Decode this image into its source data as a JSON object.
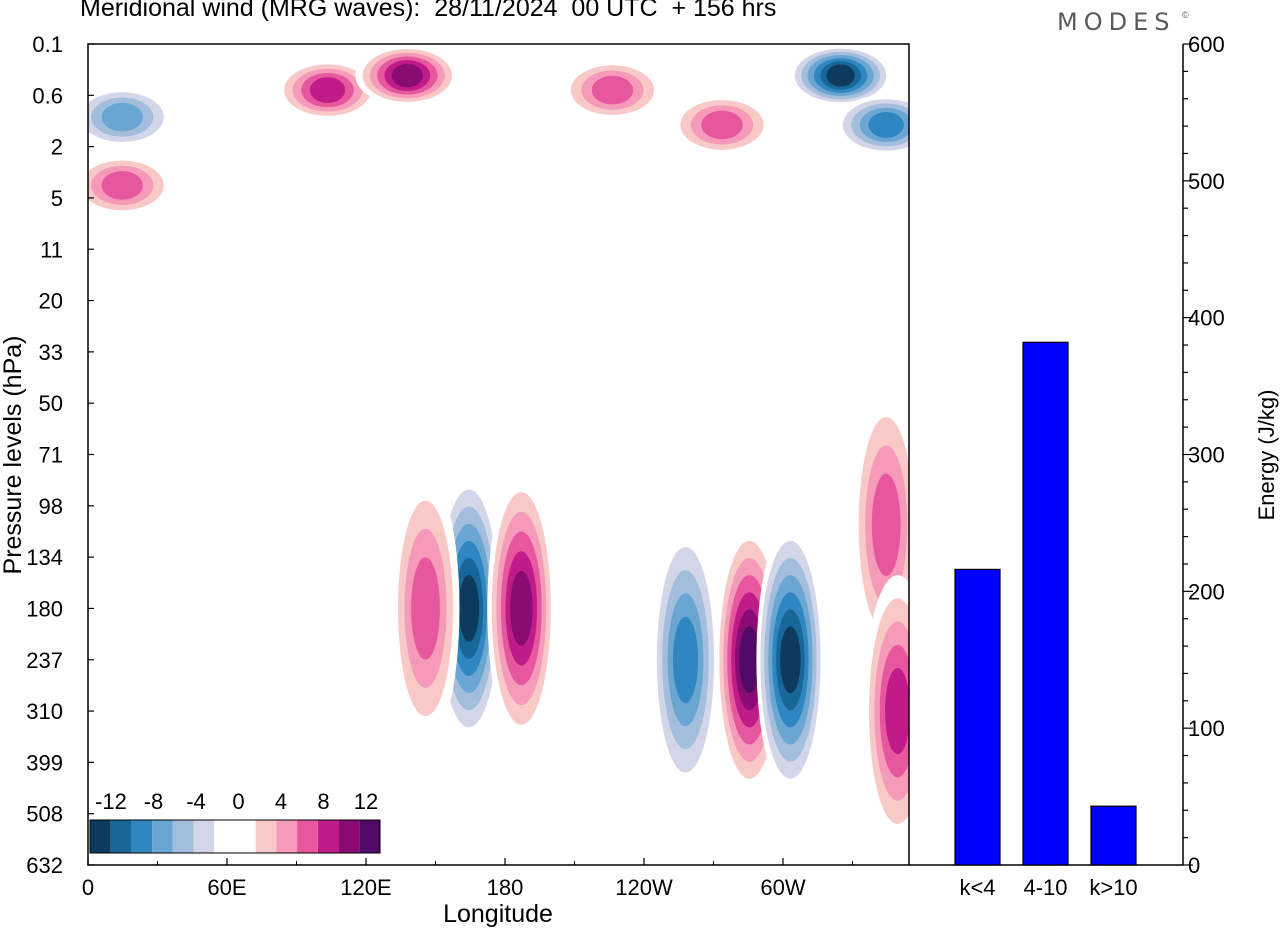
{
  "header": {
    "title": "Meridional wind (MRG waves):  28/11/2024  00 UTC  + 156 hrs",
    "brand": "MODES",
    "brand_mark": "©"
  },
  "colors": {
    "bars": "#0000ff",
    "scale": [
      "#0d3b5e",
      "#17679a",
      "#2f86c1",
      "#6aa6d1",
      "#a3bedc",
      "#d3d6e8",
      "#ffffff",
      "#ffffff",
      "#f9c9c8",
      "#f59ab8",
      "#e7579d",
      "#c01c89",
      "#8a0c72",
      "#520a68"
    ]
  },
  "chart_data": [
    {
      "type": "heatmap",
      "title": "Meridional wind (MRG waves):  28/11/2024  00 UTC  + 156 hrs",
      "xlabel": "Longitude",
      "ylabel": "Pressure levels (hPa)",
      "x_ticks": [
        "0",
        "60E",
        "120E",
        "180",
        "120W",
        "60W"
      ],
      "y_ticks": [
        "0.1",
        "0.6",
        "2",
        "5",
        "11",
        "20",
        "33",
        "50",
        "71",
        "98",
        "134",
        "180",
        "237",
        "310",
        "399",
        "508",
        "632"
      ],
      "colorbar": {
        "tick_labels": [
          "-12",
          "-8",
          "-4",
          "0",
          "4",
          "8",
          "12"
        ],
        "levels": [
          -14,
          -12,
          -10,
          -8,
          -6,
          -4,
          -2,
          0,
          2,
          4,
          6,
          8,
          10,
          12,
          14
        ]
      },
      "features": [
        {
          "lon": 167,
          "level": 180,
          "value": -15,
          "sign": "negative"
        },
        {
          "lon": 190,
          "level": 180,
          "value": 12,
          "sign": "positive"
        },
        {
          "lon": 148,
          "level": 180,
          "value": 9,
          "sign": "positive"
        },
        {
          "lon": 290,
          "level": 237,
          "value": 14,
          "sign": "positive"
        },
        {
          "lon": 308,
          "level": 237,
          "value": -15,
          "sign": "negative"
        },
        {
          "lon": 262,
          "level": 237,
          "value": -10,
          "sign": "negative"
        },
        {
          "lon": 278,
          "level": 1.2,
          "value": 8,
          "sign": "positive"
        },
        {
          "lon": 230,
          "level": 0.5,
          "value": 9,
          "sign": "positive"
        },
        {
          "lon": 330,
          "level": 0.3,
          "value": -14,
          "sign": "negative"
        },
        {
          "lon": 350,
          "level": 1.2,
          "value": -10,
          "sign": "negative"
        },
        {
          "lon": 105,
          "level": 0.5,
          "value": 10,
          "sign": "positive"
        },
        {
          "lon": 140,
          "level": 0.3,
          "value": 12,
          "sign": "positive"
        },
        {
          "lon": 15,
          "level": 1.0,
          "value": -9,
          "sign": "negative"
        },
        {
          "lon": 15,
          "level": 4.0,
          "value": 8,
          "sign": "positive"
        },
        {
          "lon": 350,
          "level": 110,
          "value": 8,
          "sign": "positive"
        },
        {
          "lon": 355,
          "level": 310,
          "value": 11,
          "sign": "positive"
        }
      ]
    },
    {
      "type": "bar",
      "categories": [
        "k<4",
        "4-10",
        "k>10"
      ],
      "values": [
        216,
        382,
        43
      ],
      "ylabel": "Energy (J/kg)",
      "ylim": [
        0,
        600
      ],
      "y_ticks": [
        "0",
        "100",
        "200",
        "300",
        "400",
        "500",
        "600"
      ]
    }
  ]
}
